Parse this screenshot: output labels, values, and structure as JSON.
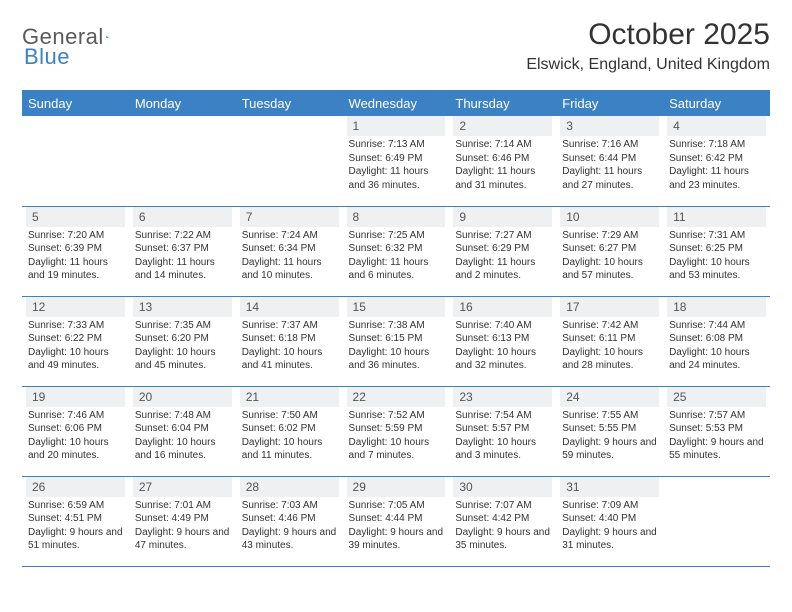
{
  "logo": {
    "word1": "General",
    "word2": "Blue"
  },
  "title": "October 2025",
  "location": "Elswick, England, United Kingdom",
  "colors": {
    "accent": "#3b82c4",
    "header_text": "#ffffff",
    "daynum_bg": "#eef0f2",
    "text": "#333333",
    "logo_gray": "#5a5a5a"
  },
  "day_headers": [
    "Sunday",
    "Monday",
    "Tuesday",
    "Wednesday",
    "Thursday",
    "Friday",
    "Saturday"
  ],
  "weeks": [
    [
      {
        "day": "",
        "sunrise": "",
        "sunset": "",
        "daylight": ""
      },
      {
        "day": "",
        "sunrise": "",
        "sunset": "",
        "daylight": ""
      },
      {
        "day": "",
        "sunrise": "",
        "sunset": "",
        "daylight": ""
      },
      {
        "day": "1",
        "sunrise": "Sunrise: 7:13 AM",
        "sunset": "Sunset: 6:49 PM",
        "daylight": "Daylight: 11 hours and 36 minutes."
      },
      {
        "day": "2",
        "sunrise": "Sunrise: 7:14 AM",
        "sunset": "Sunset: 6:46 PM",
        "daylight": "Daylight: 11 hours and 31 minutes."
      },
      {
        "day": "3",
        "sunrise": "Sunrise: 7:16 AM",
        "sunset": "Sunset: 6:44 PM",
        "daylight": "Daylight: 11 hours and 27 minutes."
      },
      {
        "day": "4",
        "sunrise": "Sunrise: 7:18 AM",
        "sunset": "Sunset: 6:42 PM",
        "daylight": "Daylight: 11 hours and 23 minutes."
      }
    ],
    [
      {
        "day": "5",
        "sunrise": "Sunrise: 7:20 AM",
        "sunset": "Sunset: 6:39 PM",
        "daylight": "Daylight: 11 hours and 19 minutes."
      },
      {
        "day": "6",
        "sunrise": "Sunrise: 7:22 AM",
        "sunset": "Sunset: 6:37 PM",
        "daylight": "Daylight: 11 hours and 14 minutes."
      },
      {
        "day": "7",
        "sunrise": "Sunrise: 7:24 AM",
        "sunset": "Sunset: 6:34 PM",
        "daylight": "Daylight: 11 hours and 10 minutes."
      },
      {
        "day": "8",
        "sunrise": "Sunrise: 7:25 AM",
        "sunset": "Sunset: 6:32 PM",
        "daylight": "Daylight: 11 hours and 6 minutes."
      },
      {
        "day": "9",
        "sunrise": "Sunrise: 7:27 AM",
        "sunset": "Sunset: 6:29 PM",
        "daylight": "Daylight: 11 hours and 2 minutes."
      },
      {
        "day": "10",
        "sunrise": "Sunrise: 7:29 AM",
        "sunset": "Sunset: 6:27 PM",
        "daylight": "Daylight: 10 hours and 57 minutes."
      },
      {
        "day": "11",
        "sunrise": "Sunrise: 7:31 AM",
        "sunset": "Sunset: 6:25 PM",
        "daylight": "Daylight: 10 hours and 53 minutes."
      }
    ],
    [
      {
        "day": "12",
        "sunrise": "Sunrise: 7:33 AM",
        "sunset": "Sunset: 6:22 PM",
        "daylight": "Daylight: 10 hours and 49 minutes."
      },
      {
        "day": "13",
        "sunrise": "Sunrise: 7:35 AM",
        "sunset": "Sunset: 6:20 PM",
        "daylight": "Daylight: 10 hours and 45 minutes."
      },
      {
        "day": "14",
        "sunrise": "Sunrise: 7:37 AM",
        "sunset": "Sunset: 6:18 PM",
        "daylight": "Daylight: 10 hours and 41 minutes."
      },
      {
        "day": "15",
        "sunrise": "Sunrise: 7:38 AM",
        "sunset": "Sunset: 6:15 PM",
        "daylight": "Daylight: 10 hours and 36 minutes."
      },
      {
        "day": "16",
        "sunrise": "Sunrise: 7:40 AM",
        "sunset": "Sunset: 6:13 PM",
        "daylight": "Daylight: 10 hours and 32 minutes."
      },
      {
        "day": "17",
        "sunrise": "Sunrise: 7:42 AM",
        "sunset": "Sunset: 6:11 PM",
        "daylight": "Daylight: 10 hours and 28 minutes."
      },
      {
        "day": "18",
        "sunrise": "Sunrise: 7:44 AM",
        "sunset": "Sunset: 6:08 PM",
        "daylight": "Daylight: 10 hours and 24 minutes."
      }
    ],
    [
      {
        "day": "19",
        "sunrise": "Sunrise: 7:46 AM",
        "sunset": "Sunset: 6:06 PM",
        "daylight": "Daylight: 10 hours and 20 minutes."
      },
      {
        "day": "20",
        "sunrise": "Sunrise: 7:48 AM",
        "sunset": "Sunset: 6:04 PM",
        "daylight": "Daylight: 10 hours and 16 minutes."
      },
      {
        "day": "21",
        "sunrise": "Sunrise: 7:50 AM",
        "sunset": "Sunset: 6:02 PM",
        "daylight": "Daylight: 10 hours and 11 minutes."
      },
      {
        "day": "22",
        "sunrise": "Sunrise: 7:52 AM",
        "sunset": "Sunset: 5:59 PM",
        "daylight": "Daylight: 10 hours and 7 minutes."
      },
      {
        "day": "23",
        "sunrise": "Sunrise: 7:54 AM",
        "sunset": "Sunset: 5:57 PM",
        "daylight": "Daylight: 10 hours and 3 minutes."
      },
      {
        "day": "24",
        "sunrise": "Sunrise: 7:55 AM",
        "sunset": "Sunset: 5:55 PM",
        "daylight": "Daylight: 9 hours and 59 minutes."
      },
      {
        "day": "25",
        "sunrise": "Sunrise: 7:57 AM",
        "sunset": "Sunset: 5:53 PM",
        "daylight": "Daylight: 9 hours and 55 minutes."
      }
    ],
    [
      {
        "day": "26",
        "sunrise": "Sunrise: 6:59 AM",
        "sunset": "Sunset: 4:51 PM",
        "daylight": "Daylight: 9 hours and 51 minutes."
      },
      {
        "day": "27",
        "sunrise": "Sunrise: 7:01 AM",
        "sunset": "Sunset: 4:49 PM",
        "daylight": "Daylight: 9 hours and 47 minutes."
      },
      {
        "day": "28",
        "sunrise": "Sunrise: 7:03 AM",
        "sunset": "Sunset: 4:46 PM",
        "daylight": "Daylight: 9 hours and 43 minutes."
      },
      {
        "day": "29",
        "sunrise": "Sunrise: 7:05 AM",
        "sunset": "Sunset: 4:44 PM",
        "daylight": "Daylight: 9 hours and 39 minutes."
      },
      {
        "day": "30",
        "sunrise": "Sunrise: 7:07 AM",
        "sunset": "Sunset: 4:42 PM",
        "daylight": "Daylight: 9 hours and 35 minutes."
      },
      {
        "day": "31",
        "sunrise": "Sunrise: 7:09 AM",
        "sunset": "Sunset: 4:40 PM",
        "daylight": "Daylight: 9 hours and 31 minutes."
      },
      {
        "day": "",
        "sunrise": "",
        "sunset": "",
        "daylight": ""
      }
    ]
  ]
}
